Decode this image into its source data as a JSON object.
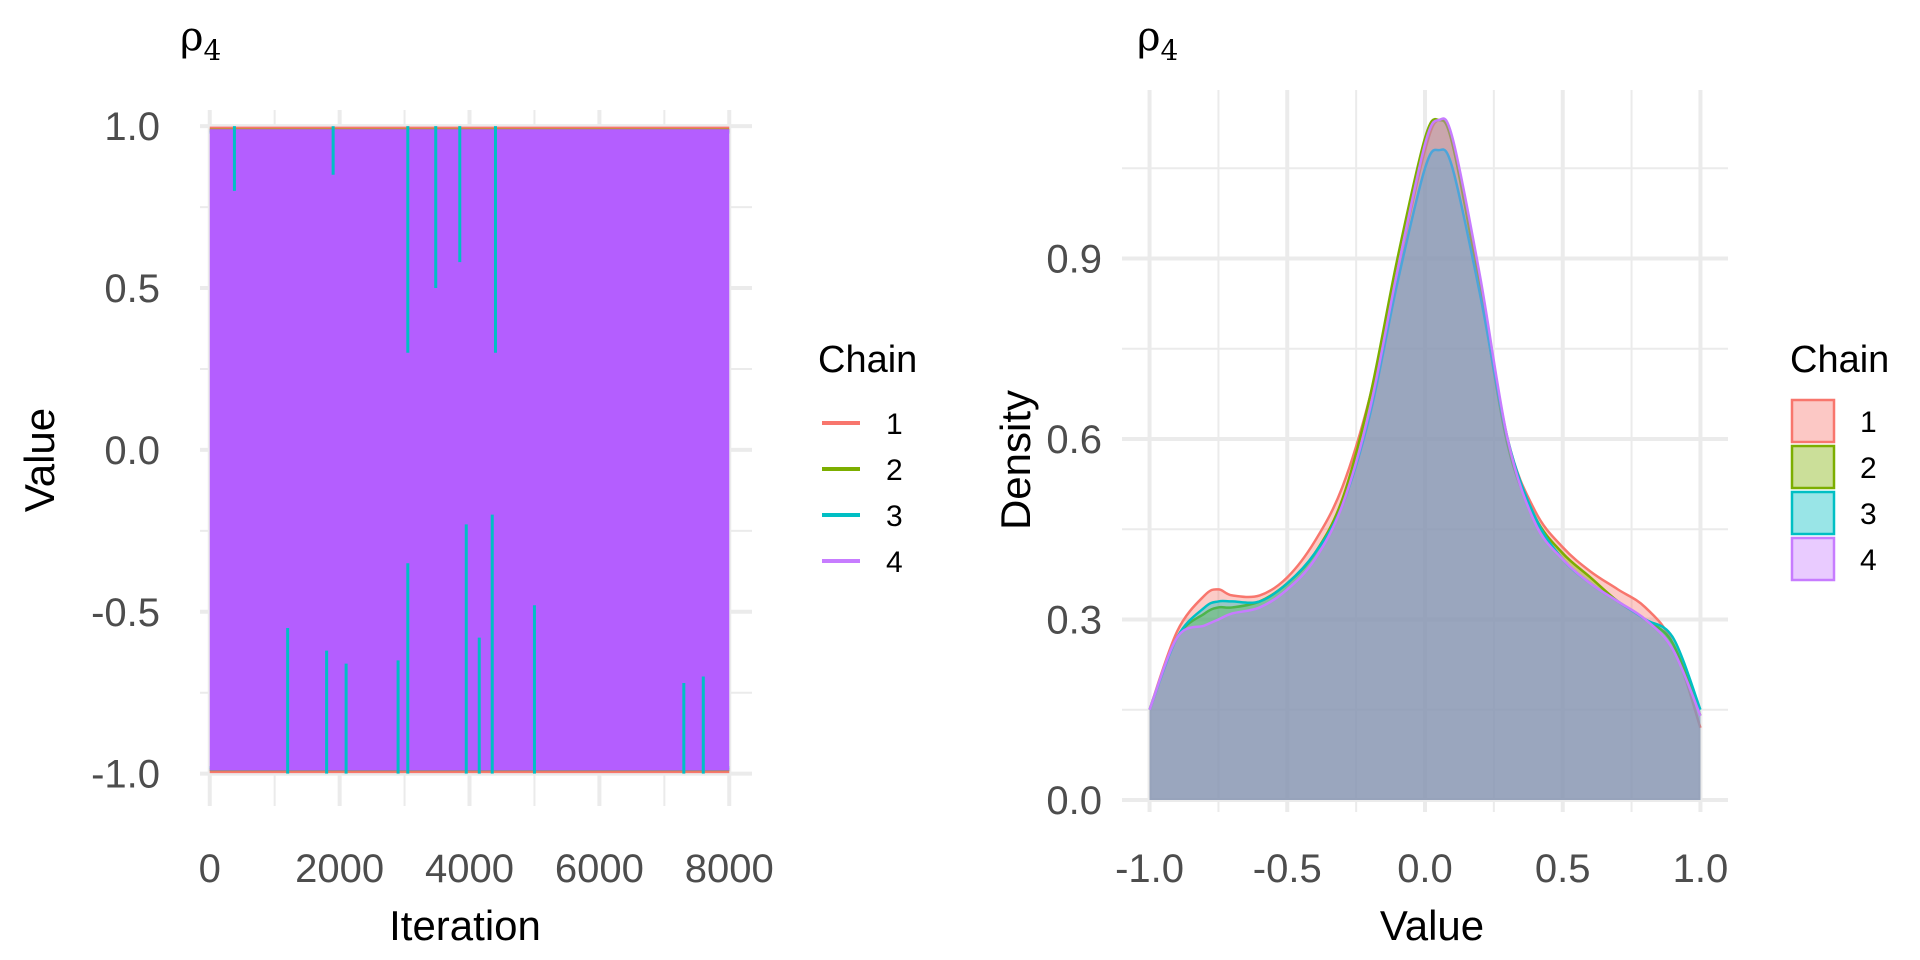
{
  "chart_data": [
    {
      "type": "line",
      "title": "ρ",
      "title_subscript": "4",
      "xlabel": "Iteration",
      "ylabel": "Value",
      "xlim": [
        -150,
        8350
      ],
      "ylim": [
        -1.1,
        1.05
      ],
      "x_ticks": [
        0,
        2000,
        4000,
        6000,
        8000
      ],
      "x_tick_labels": [
        "0",
        "2000",
        "4000",
        "6000",
        "8000"
      ],
      "y_ticks": [
        -1.0,
        -0.5,
        0.0,
        0.5,
        1.0
      ],
      "y_tick_labels": [
        "-1.0",
        "-0.5",
        "0.0",
        "0.5",
        "1.0"
      ],
      "iterations": [
        0,
        8000
      ],
      "value_range": [
        -1.0,
        1.0
      ],
      "legend": {
        "title": "Chain",
        "position": "right",
        "entries": [
          {
            "label": "1",
            "color": "#F8766D"
          },
          {
            "label": "2",
            "color": "#7CAE00"
          },
          {
            "label": "3",
            "color": "#00BFC4"
          },
          {
            "label": "4",
            "color": "#C77CFF"
          }
        ]
      },
      "spikes": [
        {
          "chain": "3",
          "x": 3050,
          "low": 0.3
        },
        {
          "chain": "3",
          "x": 3480,
          "low": 0.5
        },
        {
          "chain": "3",
          "x": 3850,
          "low": 0.58
        },
        {
          "chain": "3",
          "x": 4400,
          "low": 0.3
        },
        {
          "chain": "3",
          "x": 380,
          "low": 0.8
        },
        {
          "chain": "3",
          "x": 1900,
          "low": 0.85
        },
        {
          "chain": "3",
          "x": 3950,
          "high": -0.23
        },
        {
          "chain": "3",
          "x": 4350,
          "high": -0.2
        },
        {
          "chain": "3",
          "x": 3050,
          "high": -0.35
        },
        {
          "chain": "3",
          "x": 1800,
          "high": -0.62
        },
        {
          "chain": "3",
          "x": 1200,
          "high": -0.55
        },
        {
          "chain": "3",
          "x": 5000,
          "high": -0.48
        },
        {
          "chain": "3",
          "x": 2100,
          "high": -0.66
        },
        {
          "chain": "3",
          "x": 2900,
          "high": -0.65
        },
        {
          "chain": "3",
          "x": 4150,
          "high": -0.58
        },
        {
          "chain": "3",
          "x": 7300,
          "high": -0.72
        },
        {
          "chain": "3",
          "x": 7600,
          "high": -0.7
        }
      ]
    },
    {
      "type": "area",
      "title": "ρ",
      "title_subscript": "4",
      "xlabel": "Value",
      "ylabel": "Density",
      "xlim": [
        -1.1,
        1.1
      ],
      "ylim": [
        -0.02,
        1.18
      ],
      "x_ticks": [
        -1.0,
        -0.5,
        0.0,
        0.5,
        1.0
      ],
      "x_tick_labels": [
        "-1.0",
        "-0.5",
        "0.0",
        "0.5",
        "1.0"
      ],
      "y_ticks": [
        0.0,
        0.3,
        0.6,
        0.9
      ],
      "y_tick_labels": [
        "0.0",
        "0.3",
        "0.6",
        "0.9"
      ],
      "legend": {
        "title": "Chain",
        "position": "right",
        "entries": [
          {
            "label": "1",
            "color": "#F8766D"
          },
          {
            "label": "2",
            "color": "#7CAE00"
          },
          {
            "label": "3",
            "color": "#00BFC4"
          },
          {
            "label": "4",
            "color": "#C77CFF"
          }
        ]
      },
      "x": [
        -1.0,
        -0.9,
        -0.8,
        -0.75,
        -0.7,
        -0.6,
        -0.5,
        -0.4,
        -0.3,
        -0.2,
        -0.1,
        0.0,
        0.05,
        0.1,
        0.2,
        0.3,
        0.4,
        0.5,
        0.6,
        0.7,
        0.8,
        0.9,
        1.0
      ],
      "series": [
        {
          "name": "1",
          "values": [
            0.15,
            0.28,
            0.34,
            0.35,
            0.34,
            0.34,
            0.37,
            0.43,
            0.52,
            0.67,
            0.88,
            1.08,
            1.13,
            1.09,
            0.86,
            0.6,
            0.48,
            0.42,
            0.38,
            0.35,
            0.32,
            0.26,
            0.12
          ]
        },
        {
          "name": "2",
          "values": [
            0.15,
            0.27,
            0.31,
            0.32,
            0.32,
            0.33,
            0.36,
            0.41,
            0.5,
            0.67,
            0.9,
            1.1,
            1.13,
            1.09,
            0.85,
            0.59,
            0.47,
            0.41,
            0.37,
            0.33,
            0.3,
            0.26,
            0.14
          ]
        },
        {
          "name": "3",
          "values": [
            0.15,
            0.27,
            0.32,
            0.33,
            0.33,
            0.33,
            0.36,
            0.41,
            0.49,
            0.64,
            0.86,
            1.05,
            1.08,
            1.05,
            0.84,
            0.6,
            0.47,
            0.4,
            0.36,
            0.33,
            0.3,
            0.27,
            0.15
          ]
        },
        {
          "name": "4",
          "values": [
            0.15,
            0.27,
            0.29,
            0.3,
            0.31,
            0.32,
            0.35,
            0.4,
            0.49,
            0.65,
            0.88,
            1.09,
            1.13,
            1.1,
            0.87,
            0.6,
            0.46,
            0.4,
            0.36,
            0.33,
            0.3,
            0.25,
            0.14
          ]
        }
      ]
    }
  ]
}
